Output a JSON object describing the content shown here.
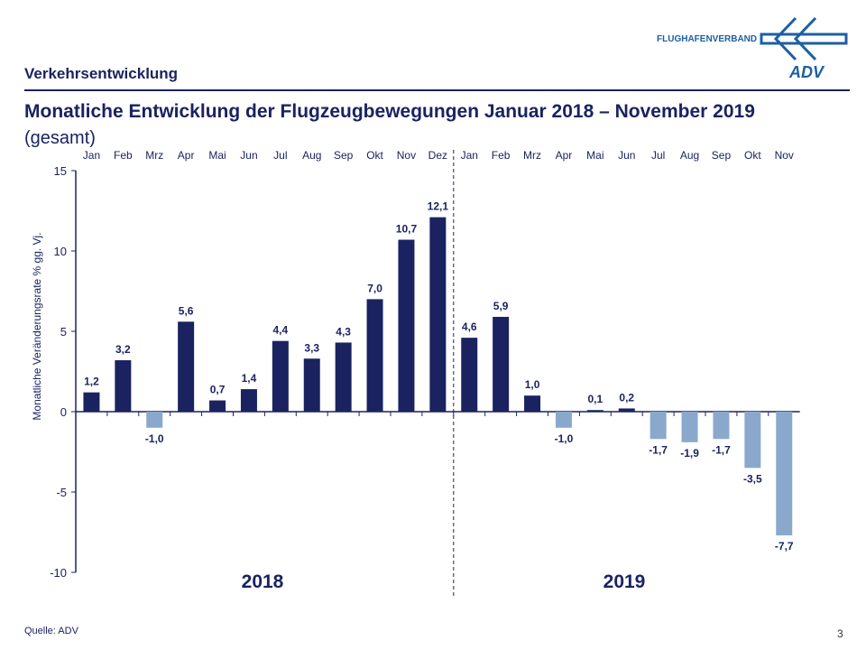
{
  "header": {
    "section": "Verkehrsentwicklung",
    "title": "Monatliche Entwicklung der Flugzeugbewegungen Januar 2018 – November 2019",
    "subtitle": "(gesamt)",
    "logo_text": "FLUGHAFENVERBAND",
    "logo_mark": "ADV"
  },
  "footer": {
    "source": "Quelle: ADV",
    "page": "3"
  },
  "chart_data": {
    "type": "bar",
    "title": "Monatliche Entwicklung der Flugzeugbewegungen Januar 2018 – November 2019",
    "ylabel": "Monatliche Veränderungsrate % gg. Vj.",
    "ylim": [
      -10,
      15
    ],
    "yticks": [
      15,
      10,
      5,
      0,
      -5,
      -10
    ],
    "grid": false,
    "groups": [
      {
        "label": "2018",
        "categories": [
          "Jan",
          "Feb",
          "Mrz",
          "Apr",
          "Mai",
          "Jun",
          "Jul",
          "Aug",
          "Sep",
          "Okt",
          "Nov",
          "Dez"
        ],
        "values": [
          1.2,
          3.2,
          -1.0,
          5.6,
          0.7,
          1.4,
          4.4,
          3.3,
          4.3,
          7.0,
          10.7,
          12.1
        ]
      },
      {
        "label": "2019",
        "categories": [
          "Jan",
          "Feb",
          "Mrz",
          "Apr",
          "Mai",
          "Jun",
          "Jul",
          "Aug",
          "Sep",
          "Okt",
          "Nov"
        ],
        "values": [
          4.6,
          5.9,
          1.0,
          -1.0,
          0.1,
          0.2,
          -1.7,
          -1.9,
          -1.7,
          -3.5,
          -7.7
        ]
      }
    ],
    "colors": {
      "positive": "#1a2360",
      "negative": "#8aa8cc",
      "axis": "#1a2360"
    }
  }
}
